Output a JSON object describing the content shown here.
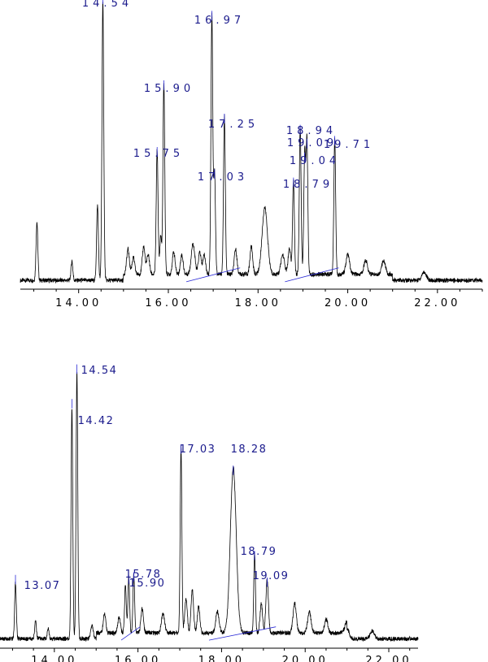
{
  "chart_data": [
    {
      "type": "line",
      "title": "",
      "xlabel": "",
      "ylabel": "",
      "xlim": [
        12.7,
        23.0
      ],
      "ylim": [
        0,
        100
      ],
      "grid": false,
      "x_ticks": [
        14.0,
        16.0,
        18.0,
        20.0,
        22.0
      ],
      "x_tick_labels": [
        "14.00",
        "16.00",
        "18.00",
        "20.00",
        "22.00"
      ],
      "colors": {
        "trace": "#000000",
        "baseline": "#2b2bd6",
        "label": "#1a1a8c"
      },
      "peaks": [
        {
          "rt": 13.07,
          "h": 21,
          "w": 0.02
        },
        {
          "rt": 13.85,
          "h": 7,
          "w": 0.02
        },
        {
          "rt": 14.42,
          "h": 27,
          "w": 0.02
        },
        {
          "rt": 14.54,
          "h": 100,
          "label": "14.54",
          "w": 0.02
        },
        {
          "rt": 15.1,
          "h": 9,
          "w": 0.03
        },
        {
          "rt": 15.22,
          "h": 6,
          "w": 0.03
        },
        {
          "rt": 15.45,
          "h": 10,
          "w": 0.03
        },
        {
          "rt": 15.55,
          "h": 7,
          "w": 0.03
        },
        {
          "rt": 15.75,
          "h": 45,
          "label": "15.75",
          "w": 0.02
        },
        {
          "rt": 15.83,
          "h": 14,
          "w": 0.02
        },
        {
          "rt": 15.9,
          "h": 69,
          "label": "15.90",
          "w": 0.02
        },
        {
          "rt": 16.12,
          "h": 8,
          "w": 0.03
        },
        {
          "rt": 16.3,
          "h": 7,
          "w": 0.03
        },
        {
          "rt": 16.55,
          "h": 11,
          "w": 0.04
        },
        {
          "rt": 16.7,
          "h": 8,
          "w": 0.03
        },
        {
          "rt": 16.8,
          "h": 7,
          "w": 0.03
        },
        {
          "rt": 16.97,
          "h": 94,
          "label": "16.97",
          "w": 0.02
        },
        {
          "rt": 17.03,
          "h": 37,
          "label": "17.03",
          "w": 0.02
        },
        {
          "rt": 17.25,
          "h": 57,
          "label": "17.25",
          "w": 0.02
        },
        {
          "rt": 17.5,
          "h": 9,
          "w": 0.03
        },
        {
          "rt": 17.85,
          "h": 10,
          "w": 0.03
        },
        {
          "rt": 18.15,
          "h": 24,
          "w": 0.06
        },
        {
          "rt": 18.55,
          "h": 7,
          "w": 0.04
        },
        {
          "rt": 18.7,
          "h": 9,
          "w": 0.03
        },
        {
          "rt": 18.79,
          "h": 34,
          "label": "18.79",
          "w": 0.02
        },
        {
          "rt": 18.94,
          "h": 53,
          "label": "18.94",
          "w": 0.02
        },
        {
          "rt": 19.04,
          "h": 43,
          "label": "19.04",
          "w": 0.02
        },
        {
          "rt": 19.09,
          "h": 48,
          "label": "19.09",
          "w": 0.02
        },
        {
          "rt": 19.71,
          "h": 49,
          "label": "19.71",
          "w": 0.02
        },
        {
          "rt": 20.0,
          "h": 7,
          "w": 0.04
        },
        {
          "rt": 20.4,
          "h": 5,
          "w": 0.04
        },
        {
          "rt": 20.8,
          "h": 5,
          "w": 0.04
        },
        {
          "rt": 21.7,
          "h": 3,
          "w": 0.05
        }
      ]
    },
    {
      "type": "line",
      "title": "",
      "xlabel": "",
      "ylabel": "",
      "xlim": [
        12.7,
        22.7
      ],
      "ylim": [
        0,
        100
      ],
      "grid": false,
      "x_ticks": [
        14.0,
        16.0,
        18.0,
        20.0,
        22.0
      ],
      "x_tick_labels": [
        "14.00",
        "16.00",
        "18.00",
        "20.00",
        "22.00"
      ],
      "colors": {
        "trace": "#000000",
        "baseline": "#2b2bd6",
        "label": "#1a1a8c"
      },
      "peaks": [
        {
          "rt": 13.07,
          "h": 21,
          "label": "13.07",
          "w": 0.02
        },
        {
          "rt": 13.55,
          "h": 7,
          "w": 0.02
        },
        {
          "rt": 13.85,
          "h": 4,
          "w": 0.02
        },
        {
          "rt": 14.42,
          "h": 87,
          "label": "14.42",
          "w": 0.02
        },
        {
          "rt": 14.54,
          "h": 100,
          "label": "14.54",
          "w": 0.02
        },
        {
          "rt": 14.9,
          "h": 5,
          "w": 0.03
        },
        {
          "rt": 15.2,
          "h": 7,
          "w": 0.03
        },
        {
          "rt": 15.55,
          "h": 6,
          "w": 0.03
        },
        {
          "rt": 15.7,
          "h": 18,
          "w": 0.02
        },
        {
          "rt": 15.78,
          "h": 21,
          "label": "15.78",
          "w": 0.02
        },
        {
          "rt": 15.9,
          "h": 22,
          "label": "15.90",
          "w": 0.02
        },
        {
          "rt": 16.1,
          "h": 9,
          "w": 0.03
        },
        {
          "rt": 16.6,
          "h": 7,
          "w": 0.04
        },
        {
          "rt": 17.03,
          "h": 70,
          "label": "17.03",
          "w": 0.02
        },
        {
          "rt": 17.15,
          "h": 13,
          "w": 0.03
        },
        {
          "rt": 17.3,
          "h": 16,
          "w": 0.03
        },
        {
          "rt": 17.45,
          "h": 10,
          "w": 0.03
        },
        {
          "rt": 17.9,
          "h": 8,
          "w": 0.04
        },
        {
          "rt": 18.28,
          "h": 62,
          "label": "18.28",
          "w": 0.07
        },
        {
          "rt": 18.79,
          "h": 30,
          "label": "18.79",
          "w": 0.02
        },
        {
          "rt": 18.95,
          "h": 11,
          "w": 0.03
        },
        {
          "rt": 19.09,
          "h": 20,
          "label": "19.09",
          "w": 0.03
        },
        {
          "rt": 19.75,
          "h": 11,
          "w": 0.04
        },
        {
          "rt": 20.1,
          "h": 8,
          "w": 0.04
        },
        {
          "rt": 20.5,
          "h": 5,
          "w": 0.04
        },
        {
          "rt": 21.0,
          "h": 4,
          "w": 0.05
        },
        {
          "rt": 21.6,
          "h": 3,
          "w": 0.05
        }
      ]
    }
  ]
}
